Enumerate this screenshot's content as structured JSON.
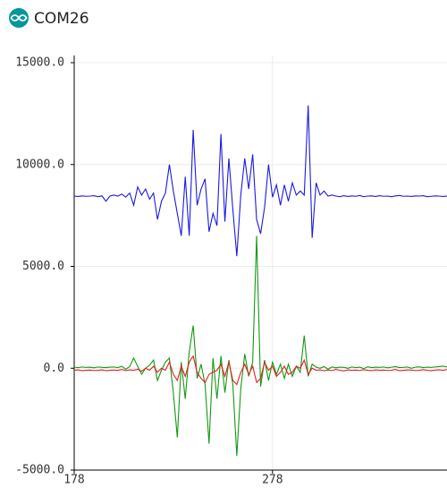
{
  "window": {
    "title": "COM26"
  },
  "chart_data": {
    "type": "line",
    "x": [
      178,
      180,
      182,
      184,
      186,
      188,
      190,
      192,
      194,
      196,
      198,
      200,
      202,
      204,
      206,
      208,
      210,
      212,
      214,
      216,
      218,
      220,
      222,
      224,
      226,
      228,
      230,
      232,
      234,
      236,
      238,
      240,
      242,
      244,
      246,
      248,
      250,
      252,
      254,
      256,
      258,
      260,
      262,
      264,
      266,
      268,
      270,
      272,
      274,
      276,
      278,
      280,
      282,
      284,
      286,
      288,
      290,
      292,
      294,
      296,
      298,
      300,
      302,
      304,
      306,
      308,
      310,
      312,
      314,
      316,
      318,
      320,
      322,
      324,
      326,
      328,
      330,
      332,
      334,
      336,
      338,
      340,
      342,
      344,
      346,
      348,
      350,
      352,
      354,
      356,
      358,
      360,
      362,
      364,
      366
    ],
    "series": [
      {
        "color": "#1a1ae0",
        "values": [
          8450,
          8430,
          8460,
          8440,
          8450,
          8470,
          8420,
          8460,
          8200,
          8450,
          8500,
          8450,
          8550,
          8400,
          8600,
          8000,
          8900,
          8500,
          8800,
          8300,
          8600,
          7300,
          8200,
          8600,
          10000,
          8700,
          7600,
          6500,
          9400,
          6500,
          11700,
          8000,
          8800,
          9300,
          6700,
          7600,
          7000,
          11500,
          7200,
          10300,
          7800,
          5500,
          8500,
          10300,
          8800,
          10500,
          7300,
          6600,
          7900,
          10000,
          8400,
          9000,
          8000,
          9000,
          8200,
          9100,
          8500,
          8700,
          8500,
          12900,
          6400,
          9100,
          8500,
          8700,
          8450,
          8500,
          8450,
          8420,
          8470,
          8430,
          8460,
          8440,
          8480,
          8420,
          8450,
          8460,
          8430,
          8470,
          8440,
          8450,
          8420,
          8460,
          8480,
          8440,
          8450,
          8430,
          8460,
          8450,
          8470,
          8420,
          8440,
          8460,
          8450,
          8430,
          8450
        ]
      },
      {
        "color": "#119911",
        "values": [
          50,
          30,
          60,
          40,
          50,
          20,
          60,
          40,
          30,
          50,
          60,
          30,
          100,
          -50,
          80,
          500,
          100,
          -300,
          0,
          150,
          400,
          -600,
          -100,
          300,
          500,
          -1200,
          -3400,
          300,
          -1500,
          800,
          2100,
          -500,
          200,
          -800,
          -3700,
          500,
          -1500,
          600,
          -1200,
          400,
          -800,
          -4300,
          -1000,
          700,
          -400,
          300,
          6500,
          -900,
          400,
          -600,
          300,
          -300,
          200,
          -500,
          200,
          -400,
          100,
          -200,
          1600,
          -400,
          200,
          50,
          0,
          80,
          -50,
          60,
          20,
          50,
          40,
          0,
          60,
          30,
          50,
          -20,
          70,
          30,
          50,
          40,
          60,
          20,
          50,
          80,
          30,
          40,
          60,
          0,
          50,
          70,
          30,
          50,
          40,
          60,
          80,
          100,
          60
        ]
      },
      {
        "color": "#e02020",
        "values": [
          -100,
          -80,
          -120,
          -100,
          -90,
          -110,
          -100,
          -80,
          -120,
          -100,
          -90,
          -100,
          -60,
          -120,
          -80,
          -100,
          -50,
          -150,
          0,
          -100,
          100,
          -200,
          0,
          -100,
          300,
          -300,
          -600,
          100,
          -400,
          300,
          600,
          -200,
          -500,
          -700,
          -300,
          -200,
          -100,
          200,
          -400,
          300,
          -600,
          -800,
          -200,
          200,
          -300,
          100,
          -700,
          -500,
          300,
          -100,
          100,
          -400,
          -200,
          100,
          -300,
          -200,
          100,
          0,
          400,
          -300,
          0,
          -100,
          -80,
          -120,
          -90,
          -110,
          -60,
          -100,
          -130,
          -80,
          -100,
          -90,
          -110,
          -70,
          -100,
          -120,
          -80,
          -100,
          -90,
          -110,
          -100,
          -60,
          -120,
          -100,
          -80,
          -90,
          -110,
          -100,
          -70,
          -100,
          -120,
          -90,
          -80,
          -100,
          -60
        ]
      }
    ],
    "xlim": [
      178,
      366
    ],
    "xticks": [
      178,
      278
    ],
    "ylim": [
      -5000,
      15000
    ],
    "yticks": [
      {
        "value": -5000,
        "label": "-5000.0"
      },
      {
        "value": 0,
        "label": "0.0"
      },
      {
        "value": 5000,
        "label": "5000.0"
      },
      {
        "value": 10000,
        "label": "10000.0"
      },
      {
        "value": 15000,
        "label": "15000.0"
      }
    ],
    "grid": true
  }
}
